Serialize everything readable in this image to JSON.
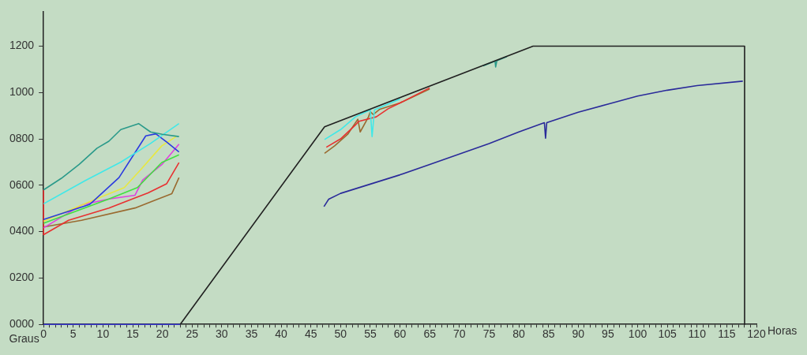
{
  "chart_data": {
    "type": "line",
    "xlabel": "Horas",
    "ylabel": "Graus",
    "xlim": [
      0,
      120
    ],
    "ylim": [
      0,
      1350
    ],
    "yticks": [
      {
        "value": 0,
        "label": "0000"
      },
      {
        "value": 200,
        "label": "0200"
      },
      {
        "value": 400,
        "label": "0400"
      },
      {
        "value": 600,
        "label": "0600"
      },
      {
        "value": 800,
        "label": "0800"
      },
      {
        "value": 1000,
        "label": "1000"
      },
      {
        "value": 1200,
        "label": "1200"
      }
    ],
    "xticks": [
      0,
      {
        "value": 1,
        "label": null
      },
      {
        "value": 2,
        "label": null
      },
      {
        "value": 3,
        "label": null
      },
      {
        "value": 4,
        "label": null
      },
      5,
      {
        "value": 6,
        "label": null
      },
      {
        "value": 7,
        "label": null
      },
      {
        "value": 8,
        "label": null
      },
      {
        "value": 9,
        "label": null
      },
      10,
      {
        "value": 11,
        "label": null
      },
      {
        "value": 12,
        "label": null
      },
      {
        "value": 13,
        "label": null
      },
      {
        "value": 14,
        "label": null
      },
      15,
      {
        "value": 16,
        "label": null
      },
      {
        "value": 17,
        "label": null
      },
      {
        "value": 18,
        "label": null
      },
      {
        "value": 19,
        "label": null
      },
      20,
      {
        "value": 21,
        "label": null
      },
      {
        "value": 22,
        "label": null
      },
      {
        "value": 23,
        "label": null
      },
      {
        "value": 24,
        "label": null
      },
      25,
      {
        "value": 26,
        "label": null
      },
      {
        "value": 27,
        "label": null
      },
      {
        "value": 28,
        "label": null
      },
      {
        "value": 29,
        "label": null
      },
      30,
      {
        "value": 31,
        "label": null
      },
      {
        "value": 32,
        "label": null
      },
      {
        "value": 33,
        "label": null
      },
      {
        "value": 34,
        "label": null
      },
      35,
      {
        "value": 36,
        "label": null
      },
      {
        "value": 37,
        "label": null
      },
      {
        "value": 38,
        "label": null
      },
      {
        "value": 39,
        "label": null
      },
      40,
      {
        "value": 41,
        "label": null
      },
      {
        "value": 42,
        "label": null
      },
      {
        "value": 43,
        "label": null
      },
      {
        "value": 44,
        "label": null
      },
      45,
      {
        "value": 46,
        "label": null
      },
      {
        "value": 47,
        "label": null
      },
      {
        "value": 48,
        "label": null
      },
      {
        "value": 49,
        "label": null
      },
      50,
      {
        "value": 51,
        "label": null
      },
      {
        "value": 52,
        "label": null
      },
      {
        "value": 53,
        "label": null
      },
      {
        "value": 54,
        "label": null
      },
      55,
      {
        "value": 56,
        "label": null
      },
      {
        "value": 57,
        "label": null
      },
      {
        "value": 58,
        "label": null
      },
      {
        "value": 59,
        "label": null
      },
      60,
      {
        "value": 61,
        "label": null
      },
      {
        "value": 62,
        "label": null
      },
      {
        "value": 63,
        "label": null
      },
      {
        "value": 64,
        "label": null
      },
      65,
      {
        "value": 66,
        "label": null
      },
      {
        "value": 67,
        "label": null
      },
      {
        "value": 68,
        "label": null
      },
      {
        "value": 69,
        "label": null
      },
      70,
      {
        "value": 71,
        "label": null
      },
      {
        "value": 72,
        "label": null
      },
      {
        "value": 73,
        "label": null
      },
      {
        "value": 74,
        "label": null
      },
      75,
      {
        "value": 76,
        "label": null
      },
      {
        "value": 77,
        "label": null
      },
      {
        "value": 78,
        "label": null
      },
      {
        "value": 79,
        "label": null
      },
      80,
      {
        "value": 81,
        "label": null
      },
      {
        "value": 82,
        "label": null
      },
      {
        "value": 83,
        "label": null
      },
      {
        "value": 84,
        "label": null
      },
      85,
      {
        "value": 86,
        "label": null
      },
      {
        "value": 87,
        "label": null
      },
      {
        "value": 88,
        "label": null
      },
      {
        "value": 89,
        "label": null
      },
      90,
      {
        "value": 91,
        "label": null
      },
      {
        "value": 92,
        "label": null
      },
      {
        "value": 93,
        "label": null
      },
      {
        "value": 94,
        "label": null
      },
      95,
      {
        "value": 96,
        "label": null
      },
      {
        "value": 97,
        "label": null
      },
      {
        "value": 98,
        "label": null
      },
      {
        "value": 99,
        "label": null
      },
      100,
      {
        "value": 101,
        "label": null
      },
      {
        "value": 102,
        "label": null
      },
      {
        "value": 103,
        "label": null
      },
      {
        "value": 104,
        "label": null
      },
      105,
      {
        "value": 106,
        "label": null
      },
      {
        "value": 107,
        "label": null
      },
      {
        "value": 108,
        "label": null
      },
      {
        "value": 109,
        "label": null
      },
      110,
      {
        "value": 111,
        "label": null
      },
      {
        "value": 112,
        "label": null
      },
      {
        "value": 113,
        "label": null
      },
      {
        "value": 114,
        "label": null
      },
      115,
      {
        "value": 116,
        "label": null
      },
      {
        "value": 117,
        "label": null
      },
      {
        "value": 118,
        "label": null
      },
      {
        "value": 119,
        "label": null
      },
      120
    ],
    "grid": false,
    "legend": false,
    "marker": "none",
    "line_style": "solid",
    "series": [
      {
        "color": "#202020",
        "x": [
          23,
          47.3,
          82.4,
          118,
          118
        ],
        "values": [
          0,
          852,
          1200,
          1200,
          0
        ]
      },
      {
        "color": "#3a3ad0",
        "x": [
          0,
          23
        ],
        "values": [
          0,
          0
        ]
      },
      {
        "color": "#2a2a9a",
        "x": [
          47.2,
          48,
          50,
          55,
          60,
          65,
          70,
          75,
          80,
          84.3,
          84.5,
          84.7,
          90,
          95,
          100,
          105,
          110,
          117.7
        ],
        "values": [
          508,
          540,
          565,
          605,
          645,
          690,
          735,
          780,
          830,
          870,
          803,
          870,
          915,
          950,
          985,
          1010,
          1030,
          1049
        ]
      },
      {
        "color": "#2a9a8a",
        "x": [
          0,
          3,
          6,
          9,
          11,
          13,
          16,
          18,
          20,
          22.8,
          40,
          74,
          76,
          76.1,
          76.3,
          78
        ],
        "values": [
          580,
          630,
          690,
          760,
          790,
          840,
          866,
          830,
          820,
          810,
          null,
          1115,
          1135,
          1110,
          1137,
          1155
        ]
      },
      {
        "color": "#40e8e8",
        "x": [
          0,
          7,
          13,
          18,
          22.8,
          40,
          47.3,
          50,
          52.5,
          55,
          55.3,
          55.7,
          60
        ],
        "values": [
          520,
          620,
          700,
          780,
          866,
          null,
          797,
          840,
          895,
          925,
          810,
          925,
          972
        ]
      },
      {
        "color": "#2a3ae0",
        "x": [
          0,
          7.8,
          12.7,
          17.2,
          18.9,
          20.7,
          22.8
        ],
        "values": [
          452,
          518,
          633,
          813,
          822,
          787,
          744
        ]
      },
      {
        "color": "#e8e840",
        "x": [
          0,
          7.8,
          13.6,
          16.3,
          19.9,
          22.3
        ],
        "values": [
          445,
          530,
          590,
          666,
          770,
          810
        ]
      },
      {
        "color": "#40e040",
        "x": [
          0,
          11,
          15.8,
          19.9,
          22.8
        ],
        "values": [
          436,
          541,
          590,
          698,
          731
        ]
      },
      {
        "color": "#e040e0",
        "x": [
          0,
          6.4,
          11,
          15.4,
          16.7,
          19.9,
          22.8
        ],
        "values": [
          416,
          515,
          541,
          557,
          623,
          689,
          777
        ]
      },
      {
        "color": "#e83030",
        "x": [
          0,
          0,
          4.2,
          11,
          17.6,
          20.7,
          22.8,
          40,
          47.6,
          50,
          52.5,
          53,
          56,
          58,
          60,
          65
        ],
        "values": [
          580,
          387,
          449,
          502,
          567,
          606,
          698,
          null,
          764,
          800,
          860,
          875,
          895,
          930,
          955,
          1020
        ]
      },
      {
        "color": "#9a6a30",
        "x": [
          0,
          6.4,
          15.4,
          21.6,
          22.8,
          40,
          47.3,
          49,
          51.2,
          52.9,
          53.3,
          54.7,
          55,
          55.5,
          56.6,
          60,
          65
        ],
        "values": [
          420,
          449,
          502,
          564,
          633,
          null,
          738,
          770,
          820,
          885,
          830,
          895,
          917,
          905,
          928,
          955,
          1015
        ]
      }
    ]
  }
}
